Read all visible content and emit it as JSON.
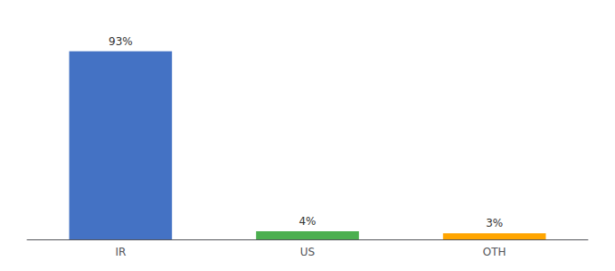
{
  "chart_data": {
    "type": "bar",
    "categories": [
      "IR",
      "US",
      "OTH"
    ],
    "values": [
      93,
      4,
      3
    ],
    "value_labels": [
      "93%",
      "4%",
      "3%"
    ],
    "colors": [
      "#4472C4",
      "#4CAF50",
      "#FFA500"
    ],
    "ylim": [
      0,
      105
    ],
    "grid": false,
    "data_labels": true,
    "tick_labels": "x"
  }
}
